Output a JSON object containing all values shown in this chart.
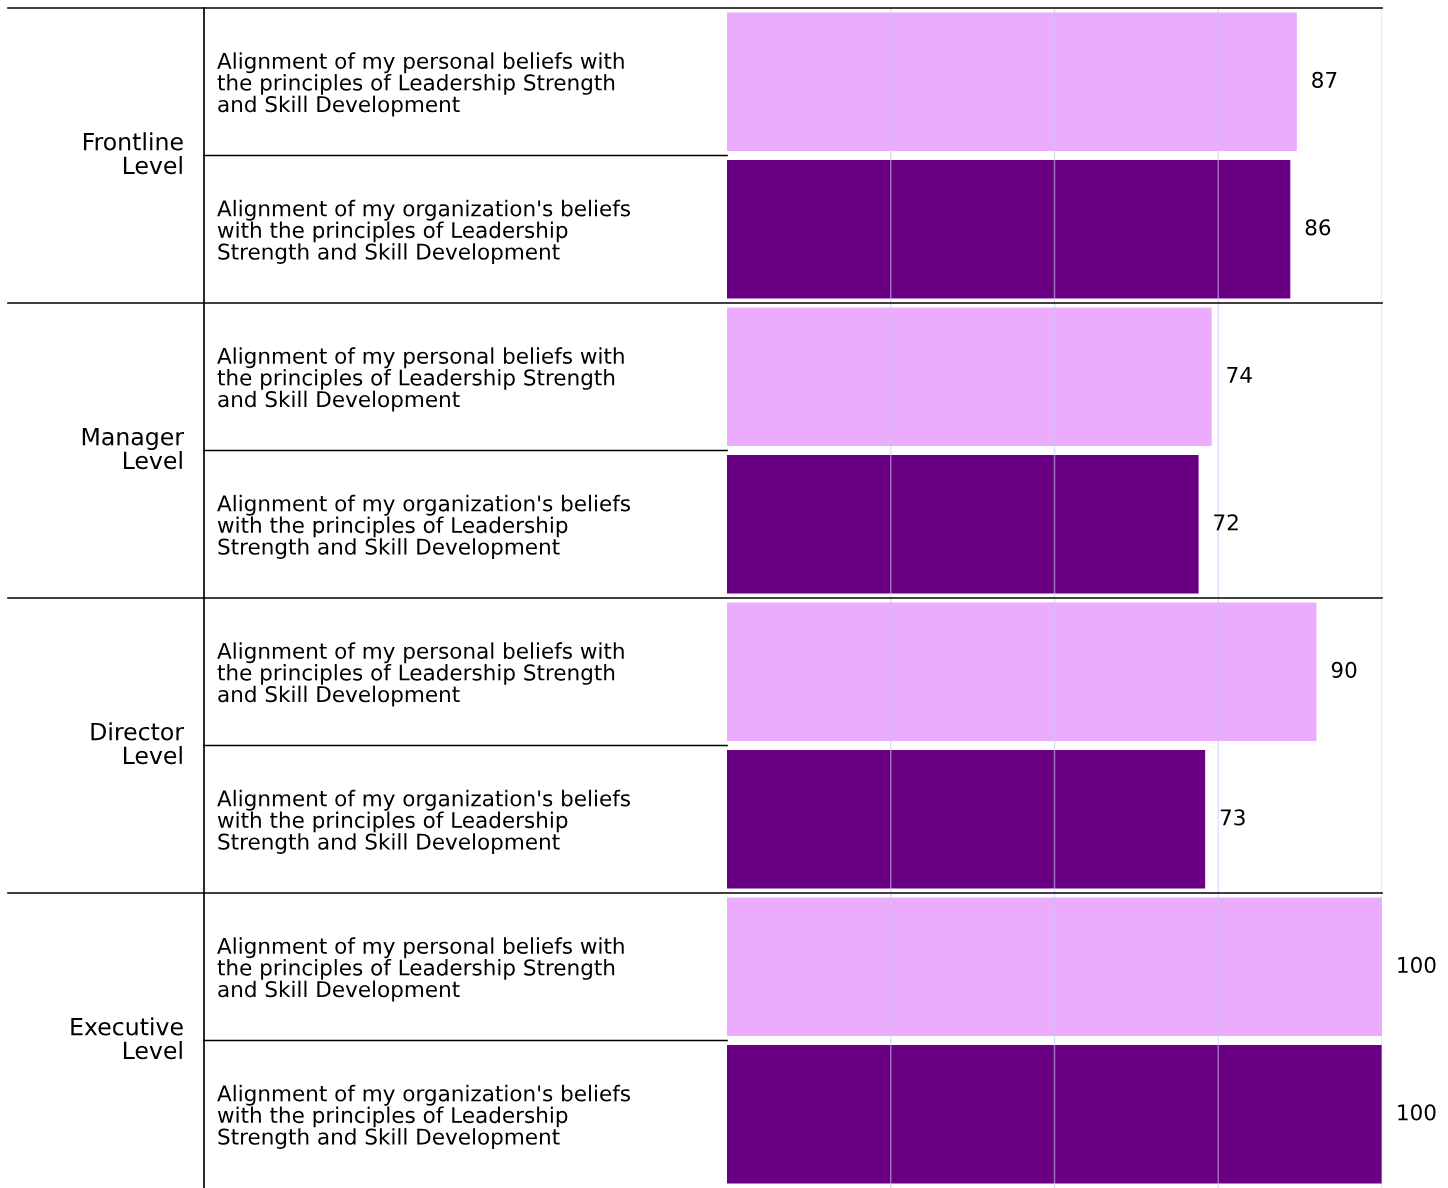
{
  "chart_data": {
    "type": "bar",
    "orientation": "horizontal",
    "categories": [
      "Alignment of my personal beliefs with\nthe principles of Leadership Strength\nand Skill Development",
      "Alignment of my organization's beliefs\nwith the principles of Leadership\nStrength and Skill Development",
      "Alignment of my personal beliefs with\nthe principles of Leadership Strength\nand Skill Development",
      "Alignment of my organization's beliefs\nwith the principles of Leadership\nStrength and Skill Development",
      "Alignment of my personal beliefs with\nthe principles of Leadership Strength\nand Skill Development",
      "Alignment of my organization's beliefs\nwith the principles of Leadership\nStrength and Skill Development",
      "Alignment of my personal beliefs with\nthe principles of Leadership Strength\nand Skill Development",
      "Alignment of my organization's beliefs\nwith the principles of Leadership\nStrength and Skill Development"
    ],
    "values": [
      87,
      86,
      74,
      72,
      90,
      73,
      100,
      100
    ],
    "colors": [
      "#ecacfe",
      "#690084",
      "#ecacfe",
      "#690084",
      "#ecacfe",
      "#690084",
      "#ecacfe",
      "#690084"
    ],
    "xlim": [
      0,
      100
    ],
    "xticks": [
      {
        "value": 25,
        "label": null
      },
      {
        "value": 50,
        "label": null
      },
      {
        "value": 75,
        "label": null
      },
      {
        "value": 100,
        "label": null
      }
    ],
    "grid": "x",
    "tick_labels": "y",
    "data_labels": true,
    "annotations": [
      "Frontline\nLevel",
      "Manager\nLevel",
      "Director\nLevel",
      "Executive\nLevel"
    ]
  }
}
